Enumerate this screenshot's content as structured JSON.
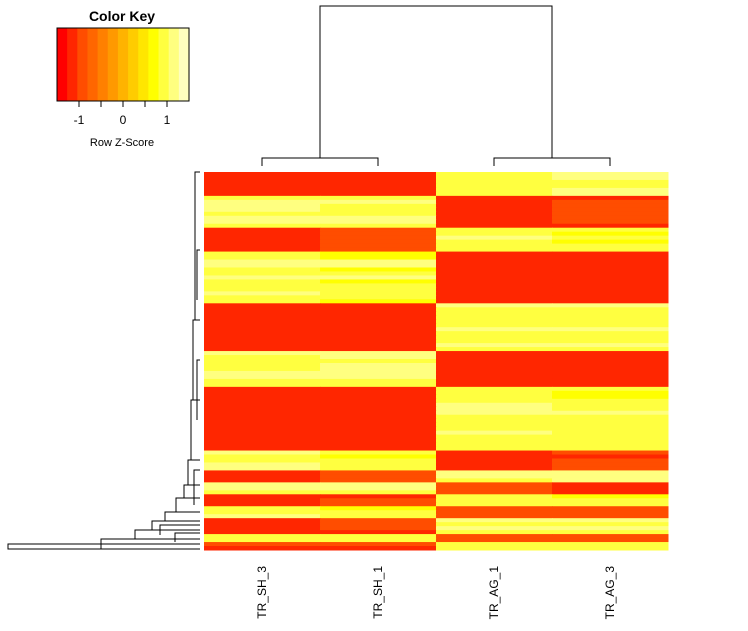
{
  "chart_data": {
    "type": "heatmap",
    "color_key": {
      "title": "Color Key",
      "xlabel": "Row Z-Score",
      "ticks": [
        "-1",
        "0",
        "1"
      ],
      "tick_values": [
        -1,
        0,
        1
      ],
      "range": [
        -1.5,
        1.5
      ],
      "colors": [
        "#ff0000",
        "#ff2600",
        "#ff4d00",
        "#ff6600",
        "#ff8000",
        "#ff9900",
        "#ffb300",
        "#ffcc00",
        "#ffe600",
        "#ffff00",
        "#ffff40",
        "#ffff80",
        "#ffffbf"
      ]
    },
    "columns": [
      "TR_SH_3",
      "TR_SH_1",
      "TR_AG_1",
      "TR_AG_3"
    ],
    "row_blocks": [
      {
        "rows": 6,
        "values": [
          -1.1,
          -1.2,
          1.0,
          1.1
        ]
      },
      {
        "rows": 8,
        "values": [
          1.1,
          1.0,
          -1.1,
          -1.0
        ]
      },
      {
        "rows": 6,
        "values": [
          -1.1,
          -1.0,
          1.0,
          0.9
        ]
      },
      {
        "rows": 13,
        "values": [
          1.0,
          0.9,
          -1.1,
          -1.2
        ]
      },
      {
        "rows": 12,
        "values": [
          -1.2,
          -1.1,
          1.0,
          1.0
        ]
      },
      {
        "rows": 9,
        "values": [
          1.0,
          1.1,
          -1.2,
          -1.1
        ]
      },
      {
        "rows": 16,
        "values": [
          -1.1,
          -1.2,
          1.0,
          0.9
        ]
      },
      {
        "rows": 5,
        "values": [
          1.0,
          0.9,
          -1.1,
          -1.0
        ]
      },
      {
        "rows": 3,
        "values": [
          -1.1,
          -1.0,
          0.9,
          1.0
        ]
      },
      {
        "rows": 3,
        "values": [
          1.0,
          1.0,
          -1.0,
          -1.1
        ]
      },
      {
        "rows": 3,
        "values": [
          -1.1,
          -1.0,
          1.0,
          0.9
        ]
      },
      {
        "rows": 3,
        "values": [
          1.0,
          0.9,
          -1.0,
          -1.0
        ]
      },
      {
        "rows": 4,
        "values": [
          -1.1,
          -1.0,
          1.0,
          1.0
        ]
      },
      {
        "rows": 2,
        "values": [
          1.0,
          1.0,
          -1.0,
          -1.0
        ]
      },
      {
        "rows": 2,
        "values": [
          -1.0,
          -1.0,
          1.0,
          1.0
        ]
      }
    ],
    "column_dendrogram": "((TR_SH_3, TR_SH_1), (TR_AG_1, TR_AG_3))",
    "row_dendrogram": "shown"
  }
}
